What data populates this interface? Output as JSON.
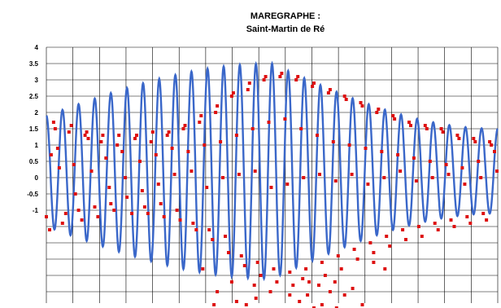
{
  "chart_data": {
    "type": "line",
    "title": "MAREGRAPHE :",
    "subtitle": "Saint-Martin de Ré",
    "ylabel": "",
    "xlabel": "",
    "ylim": [
      -4,
      4
    ],
    "y_tick_labels": [
      "4",
      "3.5",
      "3",
      "2.5",
      "2",
      "1.5",
      "1",
      "0.5",
      "0",
      "-0.5",
      "-1"
    ],
    "y_ticks": [
      4,
      3.5,
      3,
      2.5,
      2,
      1.5,
      1,
      0.5,
      0,
      -0.5,
      -1
    ],
    "grid": true,
    "legend": "none",
    "x_range": [
      0,
      28
    ],
    "series": [
      {
        "kind": "line",
        "color": "#3a67c9",
        "tide_cycles": 28,
        "amplitude_start": 1.7,
        "amplitude_peak": 3.3,
        "amplitude_end": 1.3,
        "peak_at_cycle": 14,
        "mean_level": 0.2
      },
      {
        "kind": "scatter",
        "color": "#dd1111",
        "points": [
          [
            0.0,
            -1.2
          ],
          [
            0.2,
            -1.6
          ],
          [
            0.3,
            0.7
          ],
          [
            0.45,
            1.7
          ],
          [
            0.55,
            1.5
          ],
          [
            0.7,
            0.9
          ],
          [
            0.8,
            0.3
          ],
          [
            1.0,
            -1.4
          ],
          [
            1.2,
            -1.1
          ],
          [
            1.4,
            1.4
          ],
          [
            1.55,
            1.6
          ],
          [
            1.7,
            0.4
          ],
          [
            1.8,
            -0.5
          ],
          [
            2.0,
            -1.0
          ],
          [
            2.2,
            -1.3
          ],
          [
            2.4,
            1.3
          ],
          [
            2.5,
            1.4
          ],
          [
            2.6,
            1.2
          ],
          [
            2.8,
            0.2
          ],
          [
            3.0,
            -0.9
          ],
          [
            3.2,
            -1.2
          ],
          [
            3.4,
            1.1
          ],
          [
            3.5,
            1.3
          ],
          [
            3.7,
            0.6
          ],
          [
            3.9,
            -0.3
          ],
          [
            4.0,
            -0.8
          ],
          [
            4.2,
            -1.0
          ],
          [
            4.4,
            1.0
          ],
          [
            4.5,
            1.3
          ],
          [
            4.7,
            0.8
          ],
          [
            4.9,
            0.0
          ],
          [
            5.0,
            -0.6
          ],
          [
            5.3,
            -1.1
          ],
          [
            5.5,
            1.2
          ],
          [
            5.6,
            1.3
          ],
          [
            5.8,
            0.5
          ],
          [
            5.95,
            -0.4
          ],
          [
            6.1,
            -0.9
          ],
          [
            6.3,
            -1.1
          ],
          [
            6.5,
            1.1
          ],
          [
            6.6,
            1.4
          ],
          [
            6.8,
            0.7
          ],
          [
            6.95,
            -0.2
          ],
          [
            7.1,
            -0.8
          ],
          [
            7.3,
            -1.2
          ],
          [
            7.5,
            1.3
          ],
          [
            7.6,
            1.4
          ],
          [
            7.8,
            0.9
          ],
          [
            7.95,
            0.1
          ],
          [
            8.1,
            -1.0
          ],
          [
            8.3,
            -1.3
          ],
          [
            8.5,
            1.5
          ],
          [
            8.6,
            1.6
          ],
          [
            8.8,
            0.8
          ],
          [
            9.0,
            0.2
          ],
          [
            9.1,
            -1.4
          ],
          [
            9.3,
            -1.6
          ],
          [
            9.5,
            1.7
          ],
          [
            9.6,
            1.9
          ],
          [
            9.8,
            1.0
          ],
          [
            9.95,
            -0.3
          ],
          [
            10.1,
            -1.6
          ],
          [
            10.3,
            -1.9
          ],
          [
            10.5,
            2.0
          ],
          [
            10.6,
            2.2
          ],
          [
            10.8,
            1.1
          ],
          [
            10.95,
            0.0
          ],
          [
            11.1,
            -1.8
          ],
          [
            11.3,
            -2.3
          ],
          [
            11.5,
            2.5
          ],
          [
            11.6,
            2.6
          ],
          [
            11.8,
            1.3
          ],
          [
            11.95,
            0.1
          ],
          [
            12.1,
            -2.4
          ],
          [
            12.3,
            -2.7
          ],
          [
            12.5,
            2.7
          ],
          [
            12.6,
            2.9
          ],
          [
            12.8,
            1.5
          ],
          [
            12.95,
            0.2
          ],
          [
            13.1,
            -2.6
          ],
          [
            13.3,
            -3.0
          ],
          [
            13.5,
            3.0
          ],
          [
            13.6,
            3.1
          ],
          [
            13.8,
            1.7
          ],
          [
            13.95,
            -0.3
          ],
          [
            14.1,
            -2.8
          ],
          [
            14.3,
            -3.2
          ],
          [
            14.5,
            3.1
          ],
          [
            14.6,
            3.2
          ],
          [
            14.8,
            1.8
          ],
          [
            14.95,
            -0.2
          ],
          [
            15.1,
            -2.9
          ],
          [
            15.3,
            -3.3
          ],
          [
            15.5,
            3.0
          ],
          [
            15.6,
            3.1
          ],
          [
            15.8,
            1.5
          ],
          [
            15.95,
            0.0
          ],
          [
            16.1,
            -2.8
          ],
          [
            16.3,
            -3.2
          ],
          [
            16.5,
            2.8
          ],
          [
            16.6,
            2.9
          ],
          [
            16.8,
            1.3
          ],
          [
            16.95,
            0.1
          ],
          [
            17.1,
            -2.6
          ],
          [
            17.3,
            -3.0
          ],
          [
            17.5,
            2.6
          ],
          [
            17.6,
            2.7
          ],
          [
            17.8,
            1.1
          ],
          [
            17.95,
            -0.1
          ],
          [
            18.1,
            -2.4
          ],
          [
            18.3,
            -2.8
          ],
          [
            18.5,
            2.5
          ],
          [
            18.6,
            2.4
          ],
          [
            18.8,
            1.0
          ],
          [
            18.95,
            0.1
          ],
          [
            19.1,
            -2.2
          ],
          [
            19.3,
            -2.5
          ],
          [
            19.5,
            2.3
          ],
          [
            19.6,
            2.2
          ],
          [
            19.8,
            0.9
          ],
          [
            19.95,
            -0.2
          ],
          [
            20.1,
            -2.0
          ],
          [
            20.3,
            -2.3
          ],
          [
            20.5,
            2.0
          ],
          [
            20.6,
            2.1
          ],
          [
            20.8,
            0.8
          ],
          [
            20.95,
            0.0
          ],
          [
            21.1,
            -1.8
          ],
          [
            21.3,
            -2.1
          ],
          [
            21.5,
            1.9
          ],
          [
            21.6,
            1.8
          ],
          [
            21.8,
            0.7
          ],
          [
            21.95,
            0.2
          ],
          [
            22.1,
            -1.6
          ],
          [
            22.3,
            -1.9
          ],
          [
            22.5,
            1.7
          ],
          [
            22.6,
            1.6
          ],
          [
            22.8,
            0.6
          ],
          [
            22.95,
            -0.1
          ],
          [
            23.1,
            -1.5
          ],
          [
            23.3,
            -1.8
          ],
          [
            23.5,
            1.6
          ],
          [
            23.6,
            1.5
          ],
          [
            23.8,
            0.5
          ],
          [
            23.95,
            0.0
          ],
          [
            24.1,
            -1.4
          ],
          [
            24.3,
            -1.6
          ],
          [
            24.5,
            1.5
          ],
          [
            24.6,
            1.4
          ],
          [
            24.8,
            0.4
          ],
          [
            24.95,
            0.1
          ],
          [
            25.1,
            -1.3
          ],
          [
            25.3,
            -1.5
          ],
          [
            25.5,
            1.3
          ],
          [
            25.6,
            1.2
          ],
          [
            25.8,
            0.3
          ],
          [
            25.95,
            -0.2
          ],
          [
            26.1,
            -1.2
          ],
          [
            26.3,
            -1.4
          ],
          [
            26.5,
            1.2
          ],
          [
            26.6,
            1.1
          ],
          [
            26.8,
            0.5
          ],
          [
            26.95,
            0.0
          ],
          [
            27.1,
            -1.1
          ],
          [
            27.3,
            -1.3
          ],
          [
            27.5,
            1.1
          ],
          [
            27.6,
            1.0
          ],
          [
            27.8,
            0.8
          ],
          [
            27.95,
            0.2
          ],
          [
            10.4,
            -3.9
          ],
          [
            10.6,
            -3.5
          ],
          [
            11.2,
            -4.1
          ],
          [
            11.8,
            -3.8
          ],
          [
            12.4,
            -3.9
          ],
          [
            13.0,
            -3.7
          ],
          [
            13.5,
            -4.3
          ],
          [
            14.0,
            -4.1
          ],
          [
            14.6,
            -4.2
          ],
          [
            15.1,
            -3.6
          ],
          [
            15.7,
            -3.8
          ],
          [
            16.2,
            -3.6
          ],
          [
            16.6,
            -4.0
          ],
          [
            17.1,
            -3.9
          ],
          [
            17.6,
            -3.5
          ],
          [
            18.0,
            -4.0
          ],
          [
            18.5,
            -3.6
          ],
          [
            19.0,
            -3.4
          ],
          [
            19.6,
            -3.9
          ],
          [
            11.5,
            -3.2
          ],
          [
            12.9,
            -3.3
          ],
          [
            15.9,
            -3.1
          ],
          [
            17.9,
            -3.2
          ],
          [
            20.3,
            -2.6
          ],
          [
            21.0,
            -2.8
          ],
          [
            9.7,
            -2.8
          ],
          [
            13.9,
            -3.5
          ],
          [
            16.9,
            -3.3
          ]
        ]
      }
    ]
  }
}
